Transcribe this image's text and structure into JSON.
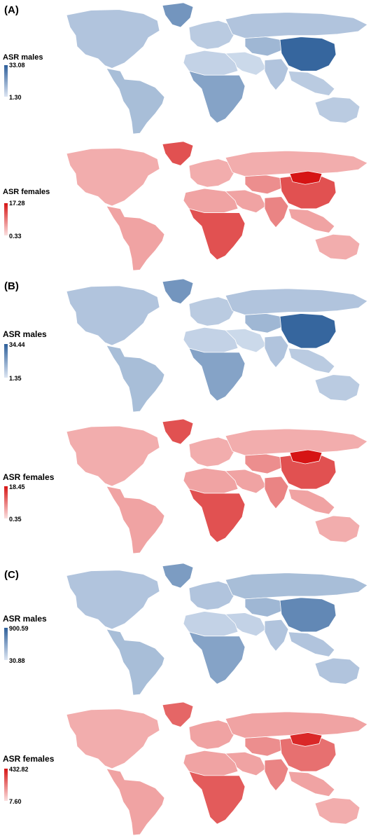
{
  "panels": [
    {
      "label": "(A)",
      "maps": [
        {
          "sex": "male",
          "legend_title": "ASR males",
          "max_label": "33.08",
          "min_label": "1.30",
          "color_low": "#dde6f3",
          "color_high": "#2d5f9a",
          "ocean": "#ffffff",
          "regions": {
            "north-america": 0.25,
            "greenland": 0.6,
            "latin-america": 0.3,
            "europe": 0.2,
            "north-africa": 0.15,
            "sub-saharan-africa": 0.5,
            "middle-east": 0.1,
            "russia": 0.25,
            "central-asia": 0.35,
            "china": 0.95,
            "south-asia": 0.25,
            "southeast-asia": 0.2,
            "australia": 0.2
          }
        },
        {
          "sex": "female",
          "legend_title": "ASR females",
          "max_label": "17.28",
          "min_label": "0.33",
          "color_low": "#fbe0e0",
          "color_high": "#d61414",
          "ocean": "#ffffff",
          "regions": {
            "north-america": 0.25,
            "greenland": 0.7,
            "latin-america": 0.3,
            "europe": 0.25,
            "north-africa": 0.3,
            "sub-saharan-africa": 0.7,
            "middle-east": 0.3,
            "russia": 0.25,
            "central-asia": 0.4,
            "china": 0.7,
            "south-asia": 0.45,
            "southeast-asia": 0.3,
            "australia": 0.25,
            "mongolia": 1.0
          }
        }
      ]
    },
    {
      "label": "(B)",
      "maps": [
        {
          "sex": "male",
          "legend_title": "ASR males",
          "max_label": "34.44",
          "min_label": "1.35",
          "color_low": "#dde6f3",
          "color_high": "#2d5f9a",
          "ocean": "#ffffff",
          "regions": {
            "north-america": 0.25,
            "greenland": 0.6,
            "latin-america": 0.3,
            "europe": 0.2,
            "north-africa": 0.15,
            "sub-saharan-africa": 0.5,
            "middle-east": 0.1,
            "russia": 0.25,
            "central-asia": 0.35,
            "china": 0.95,
            "south-asia": 0.25,
            "southeast-asia": 0.2,
            "australia": 0.2
          }
        },
        {
          "sex": "female",
          "legend_title": "ASR females",
          "max_label": "18.45",
          "min_label": "0.35",
          "color_low": "#fbe0e0",
          "color_high": "#d61414",
          "ocean": "#ffffff",
          "regions": {
            "north-america": 0.25,
            "greenland": 0.7,
            "latin-america": 0.3,
            "europe": 0.25,
            "north-africa": 0.3,
            "sub-saharan-africa": 0.7,
            "middle-east": 0.3,
            "russia": 0.25,
            "central-asia": 0.4,
            "china": 0.7,
            "south-asia": 0.45,
            "southeast-asia": 0.3,
            "australia": 0.25,
            "mongolia": 1.0
          }
        }
      ]
    },
    {
      "label": "(C)",
      "maps": [
        {
          "sex": "male",
          "legend_title": "ASR males",
          "max_label": "900.59",
          "min_label": "30.88",
          "color_low": "#dde6f3",
          "color_high": "#2d5f9a",
          "ocean": "#ffffff",
          "regions": {
            "north-america": 0.25,
            "greenland": 0.55,
            "latin-america": 0.3,
            "europe": 0.25,
            "north-africa": 0.15,
            "sub-saharan-africa": 0.5,
            "middle-east": 0.15,
            "russia": 0.3,
            "central-asia": 0.35,
            "china": 0.7,
            "south-asia": 0.25,
            "southeast-asia": 0.25,
            "australia": 0.25
          }
        },
        {
          "sex": "female",
          "legend_title": "ASR females",
          "max_label": "432.82",
          "min_label": "7.60",
          "color_low": "#fbe0e0",
          "color_high": "#d61414",
          "ocean": "#ffffff",
          "regions": {
            "north-america": 0.25,
            "greenland": 0.6,
            "latin-america": 0.3,
            "europe": 0.3,
            "north-africa": 0.3,
            "sub-saharan-africa": 0.65,
            "middle-east": 0.3,
            "russia": 0.3,
            "central-asia": 0.4,
            "china": 0.55,
            "south-asia": 0.45,
            "southeast-asia": 0.3,
            "australia": 0.25,
            "mongolia": 0.9
          }
        }
      ]
    }
  ]
}
